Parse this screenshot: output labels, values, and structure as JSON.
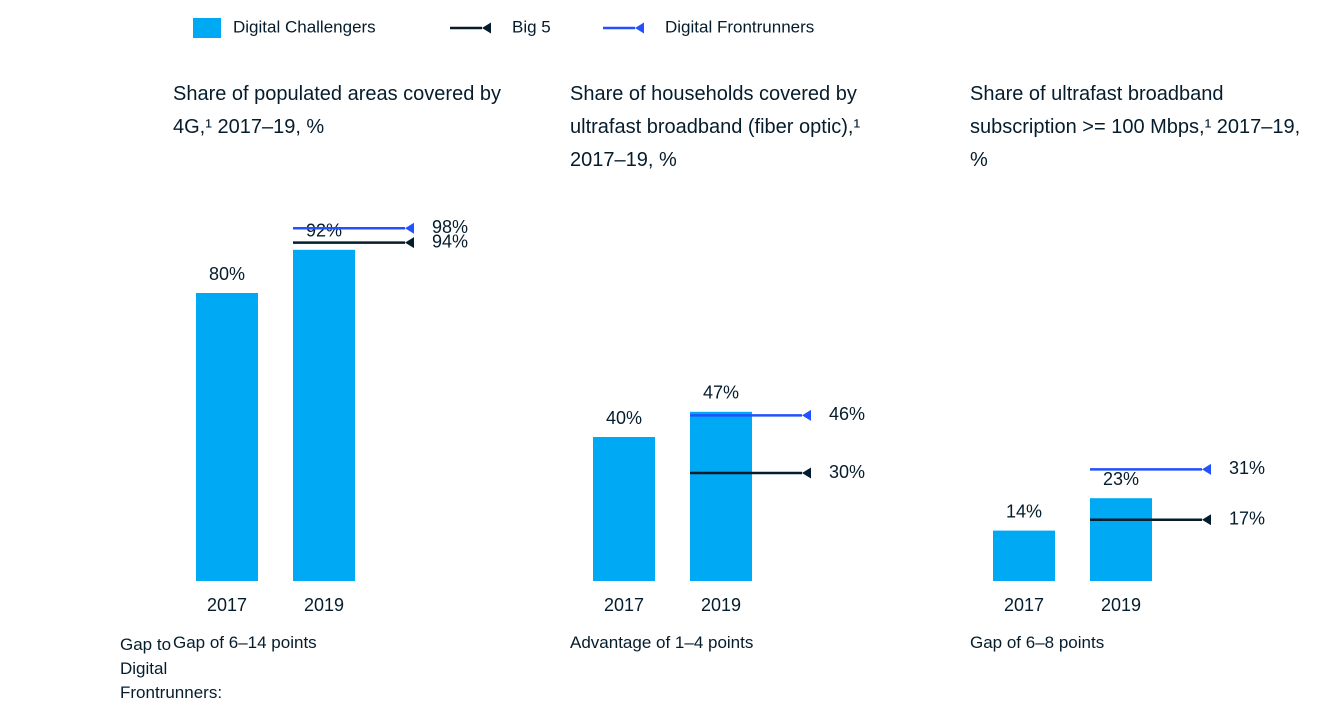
{
  "legend": [
    {
      "name": "Digital Challengers",
      "color": "#00a9f4"
    },
    {
      "name": "Big 5",
      "color": "#051c2c"
    },
    {
      "name": "Digital Frontrunners",
      "color": "#2251ff"
    }
  ],
  "footer_label": "Gap to Digital Frontrunners:",
  "chart_data": [
    {
      "type": "bar",
      "title": "Share of populated areas covered by 4G,¹ 2017–19, %",
      "categories": [
        "2017",
        "2019"
      ],
      "ylim": [
        0,
        100
      ],
      "series": [
        {
          "values": [
            80,
            92
          ],
          "value_labels": [
            "80%",
            "92%"
          ]
        },
        {
          "values": [
            null,
            94
          ],
          "value_labels": [
            null,
            "94%"
          ]
        },
        {
          "values": [
            null,
            98
          ],
          "value_labels": [
            null,
            "98%"
          ]
        }
      ],
      "note": "Gap of 6–14 points"
    },
    {
      "type": "bar",
      "title": "Share of households covered by ultrafast broadband (fiber optic),¹ 2017–19, %",
      "categories": [
        "2017",
        "2019"
      ],
      "ylim": [
        0,
        100
      ],
      "series": [
        {
          "values": [
            40,
            47
          ],
          "value_labels": [
            "40%",
            "47%"
          ]
        },
        {
          "values": [
            null,
            30
          ],
          "value_labels": [
            null,
            "30%"
          ]
        },
        {
          "values": [
            null,
            46
          ],
          "value_labels": [
            null,
            "46%"
          ]
        }
      ],
      "note": "Advantage of 1–4 points"
    },
    {
      "type": "bar",
      "title": "Share of ultrafast broadband subscription >= 100 Mbps,¹ 2017–19, %",
      "categories": [
        "2017",
        "2019"
      ],
      "ylim": [
        0,
        100
      ],
      "series": [
        {
          "values": [
            14,
            23
          ],
          "value_labels": [
            "14%",
            "23%"
          ]
        },
        {
          "values": [
            null,
            17
          ],
          "value_labels": [
            null,
            "17%"
          ]
        },
        {
          "values": [
            null,
            31
          ],
          "value_labels": [
            null,
            "31%"
          ]
        }
      ],
      "note": "Gap of 6–8 points"
    }
  ]
}
